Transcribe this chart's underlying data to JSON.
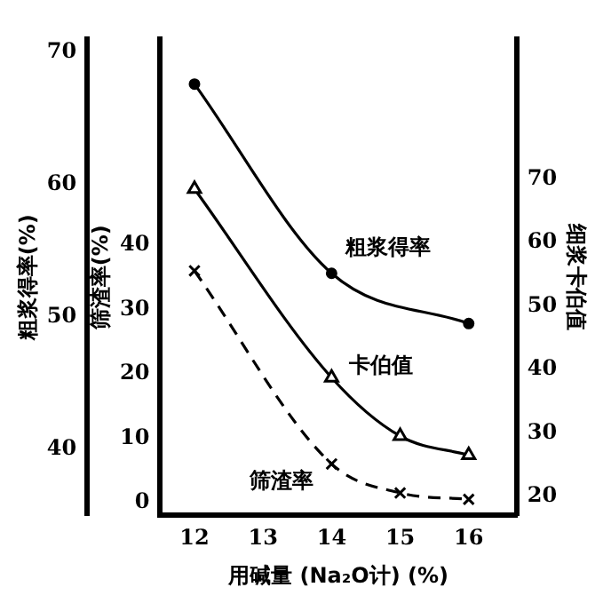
{
  "chart_data": {
    "type": "line",
    "xlabel": "用碱量 (Na₂O计) (%)",
    "ylabel": "粗浆得率(%)",
    "y2label": "筛渣率(%)",
    "y3label": "细浆卡伯值",
    "x": [
      12,
      14,
      15,
      16
    ],
    "xlim": [
      11.5,
      16.7
    ],
    "xticks": [
      12,
      13,
      14,
      15,
      16
    ],
    "ylim": [
      35,
      71
    ],
    "yticks": [
      40,
      50,
      60,
      70
    ],
    "y2lim": [
      -2,
      72
    ],
    "y2ticks": [
      0,
      10,
      20,
      30,
      40
    ],
    "y3lim": [
      17,
      92
    ],
    "y3ticks": [
      20,
      30,
      40,
      50,
      60,
      70
    ],
    "grid": false,
    "legend": false,
    "series": [
      {
        "name": "粗浆得率",
        "color": "#000000",
        "x": [
          12,
          14,
          16
        ],
        "values": [
          67.6,
          53.3,
          49.5
        ],
        "marker": "circle",
        "line_style": "solid"
      },
      {
        "name": "卡伯值",
        "color": "#000000",
        "axis": "y3",
        "values": [
          68.4,
          38.7,
          29.5,
          26.5
        ],
        "marker": "triangle",
        "line_style": "solid"
      },
      {
        "name": "筛渣率",
        "color": "#000000",
        "axis": "y2",
        "values": [
          36,
          6,
          1.5,
          0.5
        ],
        "marker": "cross",
        "line_style": "dashed"
      }
    ]
  }
}
